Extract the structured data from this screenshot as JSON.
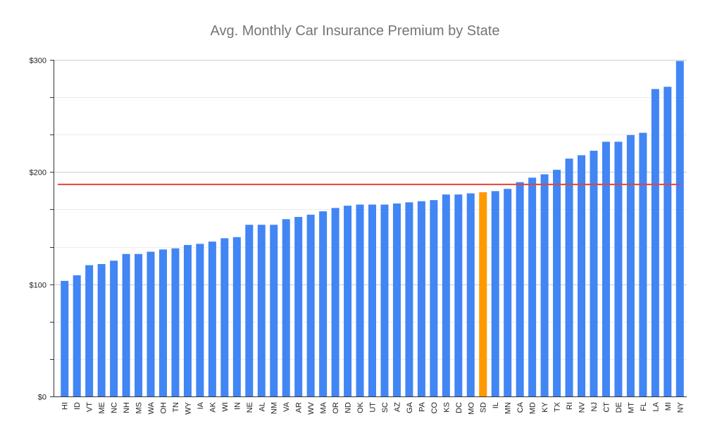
{
  "chart_data": {
    "type": "bar",
    "title": "Avg. Monthly Car Insurance Premium by State",
    "xlabel": "",
    "ylabel": "",
    "ylim": [
      0,
      300
    ],
    "yticks": [
      "$0",
      "$100",
      "$200",
      "$300"
    ],
    "grid": true,
    "legend": "none",
    "categories": [
      "HI",
      "ID",
      "VT",
      "ME",
      "NC",
      "NH",
      "MS",
      "WA",
      "OH",
      "TN",
      "WY",
      "IA",
      "AK",
      "WI",
      "IN",
      "NE",
      "AL",
      "NM",
      "VA",
      "AR",
      "WV",
      "MA",
      "OR",
      "ND",
      "OK",
      "UT",
      "SC",
      "AZ",
      "GA",
      "PA",
      "CO",
      "KS",
      "DC",
      "MO",
      "SD",
      "IL",
      "MN",
      "CA",
      "MD",
      "KY",
      "TX",
      "RI",
      "NV",
      "NJ",
      "CT",
      "DE",
      "MT",
      "FL",
      "LA",
      "MI",
      "NY"
    ],
    "values": [
      103,
      108,
      117,
      118,
      121,
      127,
      127,
      129,
      131,
      132,
      135,
      136,
      138,
      141,
      142,
      153,
      153,
      153,
      158,
      160,
      162,
      165,
      168,
      170,
      171,
      171,
      171,
      172,
      173,
      174,
      175,
      180,
      180,
      181,
      182,
      183,
      185,
      191,
      195,
      198,
      202,
      212,
      215,
      219,
      227,
      227,
      233,
      235,
      274,
      276,
      299
    ],
    "highlight": "SD",
    "average_line": 189,
    "colors": {
      "bar": "#4285f4",
      "highlight": "#ff9900",
      "average_line": "#ea4335",
      "title": "#757575"
    }
  }
}
